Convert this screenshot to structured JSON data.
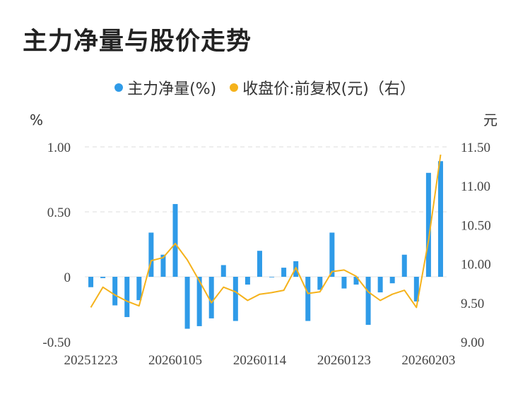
{
  "title": "主力净量与股价走势",
  "legend": [
    {
      "label": "主力净量(%)",
      "color": "#2f9be8"
    },
    {
      "label": "收盘价:前复权(元)（右）",
      "color": "#f5b21b"
    }
  ],
  "chart_data": {
    "type": "bar+line",
    "left_unit": "%",
    "right_unit": "元",
    "left_ylim": [
      -0.5,
      1.0
    ],
    "right_ylim": [
      9.0,
      11.5
    ],
    "left_ticks": [
      "1.00",
      "0.50",
      "0",
      "-0.50"
    ],
    "right_ticks": [
      "11.50",
      "11.00",
      "10.50",
      "10.00",
      "9.50",
      "9.00"
    ],
    "x_tick_labels": [
      "20251223",
      "20260105",
      "20260114",
      "20260123",
      "20260203"
    ],
    "x_tick_index": [
      0,
      7,
      14,
      21,
      28
    ],
    "series": [
      {
        "name": "主力净量(%)",
        "type": "bar",
        "values": [
          -0.08,
          -0.01,
          -0.22,
          -0.31,
          -0.18,
          0.34,
          0.17,
          0.56,
          -0.4,
          -0.38,
          -0.32,
          0.09,
          -0.34,
          -0.06,
          0.2,
          0.0,
          0.07,
          0.12,
          -0.34,
          -0.1,
          0.34,
          -0.09,
          -0.06,
          -0.37,
          -0.12,
          -0.05,
          0.17,
          -0.19,
          0.8,
          0.89
        ]
      },
      {
        "name": "收盘价:前复权(元)（右）",
        "type": "line",
        "values": [
          9.44,
          9.7,
          9.6,
          9.52,
          9.46,
          10.04,
          10.08,
          10.26,
          10.05,
          9.78,
          9.5,
          9.7,
          9.64,
          9.53,
          9.61,
          9.63,
          9.66,
          9.95,
          9.62,
          9.64,
          9.9,
          9.92,
          9.84,
          9.64,
          9.53,
          9.61,
          9.66,
          9.44,
          10.3,
          11.4
        ]
      }
    ]
  }
}
